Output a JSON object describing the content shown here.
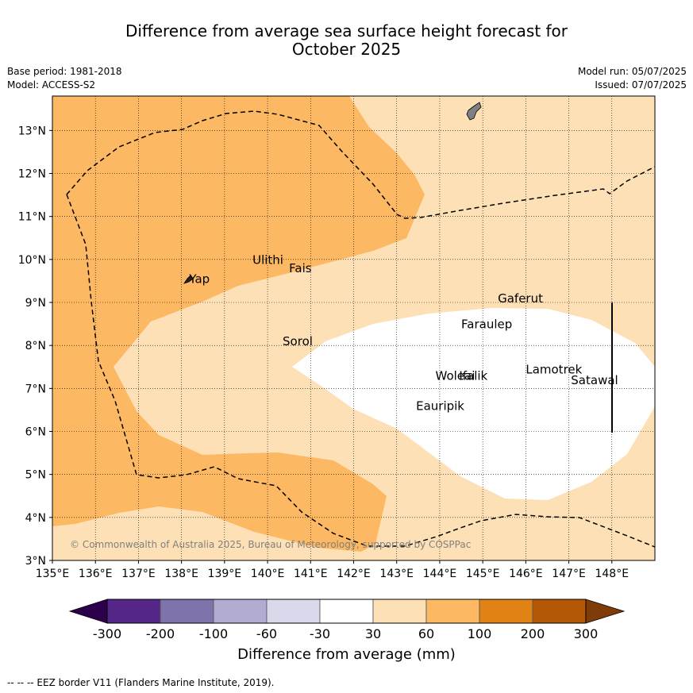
{
  "title_line1": "Difference from average sea surface height forecast for",
  "title_line2": "October 2025",
  "meta_left": [
    "Base period: 1981-2018",
    "Model: ACCESS-S2"
  ],
  "meta_right": [
    "Model run: 05/07/2025",
    "Issued: 07/07/2025"
  ],
  "copyright": "© Commonwealth of Australia 2025, Bureau of Meteorology, supported by COSPPac",
  "lon_ticks": [
    "135°E",
    "136°E",
    "137°E",
    "138°E",
    "139°E",
    "140°E",
    "141°E",
    "142°E",
    "143°E",
    "144°E",
    "145°E",
    "146°E",
    "147°E",
    "148°E"
  ],
  "lat_ticks": [
    "3°N",
    "4°N",
    "5°N",
    "6°N",
    "7°N",
    "8°N",
    "9°N",
    "10°N",
    "11°N",
    "12°N",
    "13°N"
  ],
  "places": [
    {
      "name": "Yap",
      "lon": 138.18,
      "lat": 9.45
    },
    {
      "name": "Ulithi",
      "lon": 139.65,
      "lat": 9.9
    },
    {
      "name": "Fais",
      "lon": 140.5,
      "lat": 9.7
    },
    {
      "name": "Sorol",
      "lon": 140.35,
      "lat": 8.0
    },
    {
      "name": "Gaferut",
      "lon": 145.35,
      "lat": 9.0
    },
    {
      "name": "Faraulep",
      "lon": 144.5,
      "lat": 8.4
    },
    {
      "name": "Woleai",
      "lon": 143.9,
      "lat": 7.2
    },
    {
      "name": "Ifalik",
      "lon": 144.45,
      "lat": 7.2
    },
    {
      "name": "Lamotrek",
      "lon": 146.0,
      "lat": 7.35
    },
    {
      "name": "Satawal",
      "lon": 147.05,
      "lat": 7.1
    },
    {
      "name": "Eauripik",
      "lon": 143.45,
      "lat": 6.5
    }
  ],
  "colorbar": {
    "labels": [
      "-300",
      "-200",
      "-100",
      "-60",
      "-30",
      "30",
      "60",
      "100",
      "200",
      "300"
    ],
    "colors": [
      "#542788",
      "#8073ac",
      "#b2abd2",
      "#d8daeb",
      "#ffffff",
      "#fee0b6",
      "#fdb863",
      "#e08214",
      "#b35806"
    ],
    "under_color": "#2d004b",
    "over_color": "#7f3b08",
    "label": "Difference from average (mm)"
  },
  "eez_note": "--  --  -- EEZ border V11 (Flanders Marine Institute, 2019)."
}
